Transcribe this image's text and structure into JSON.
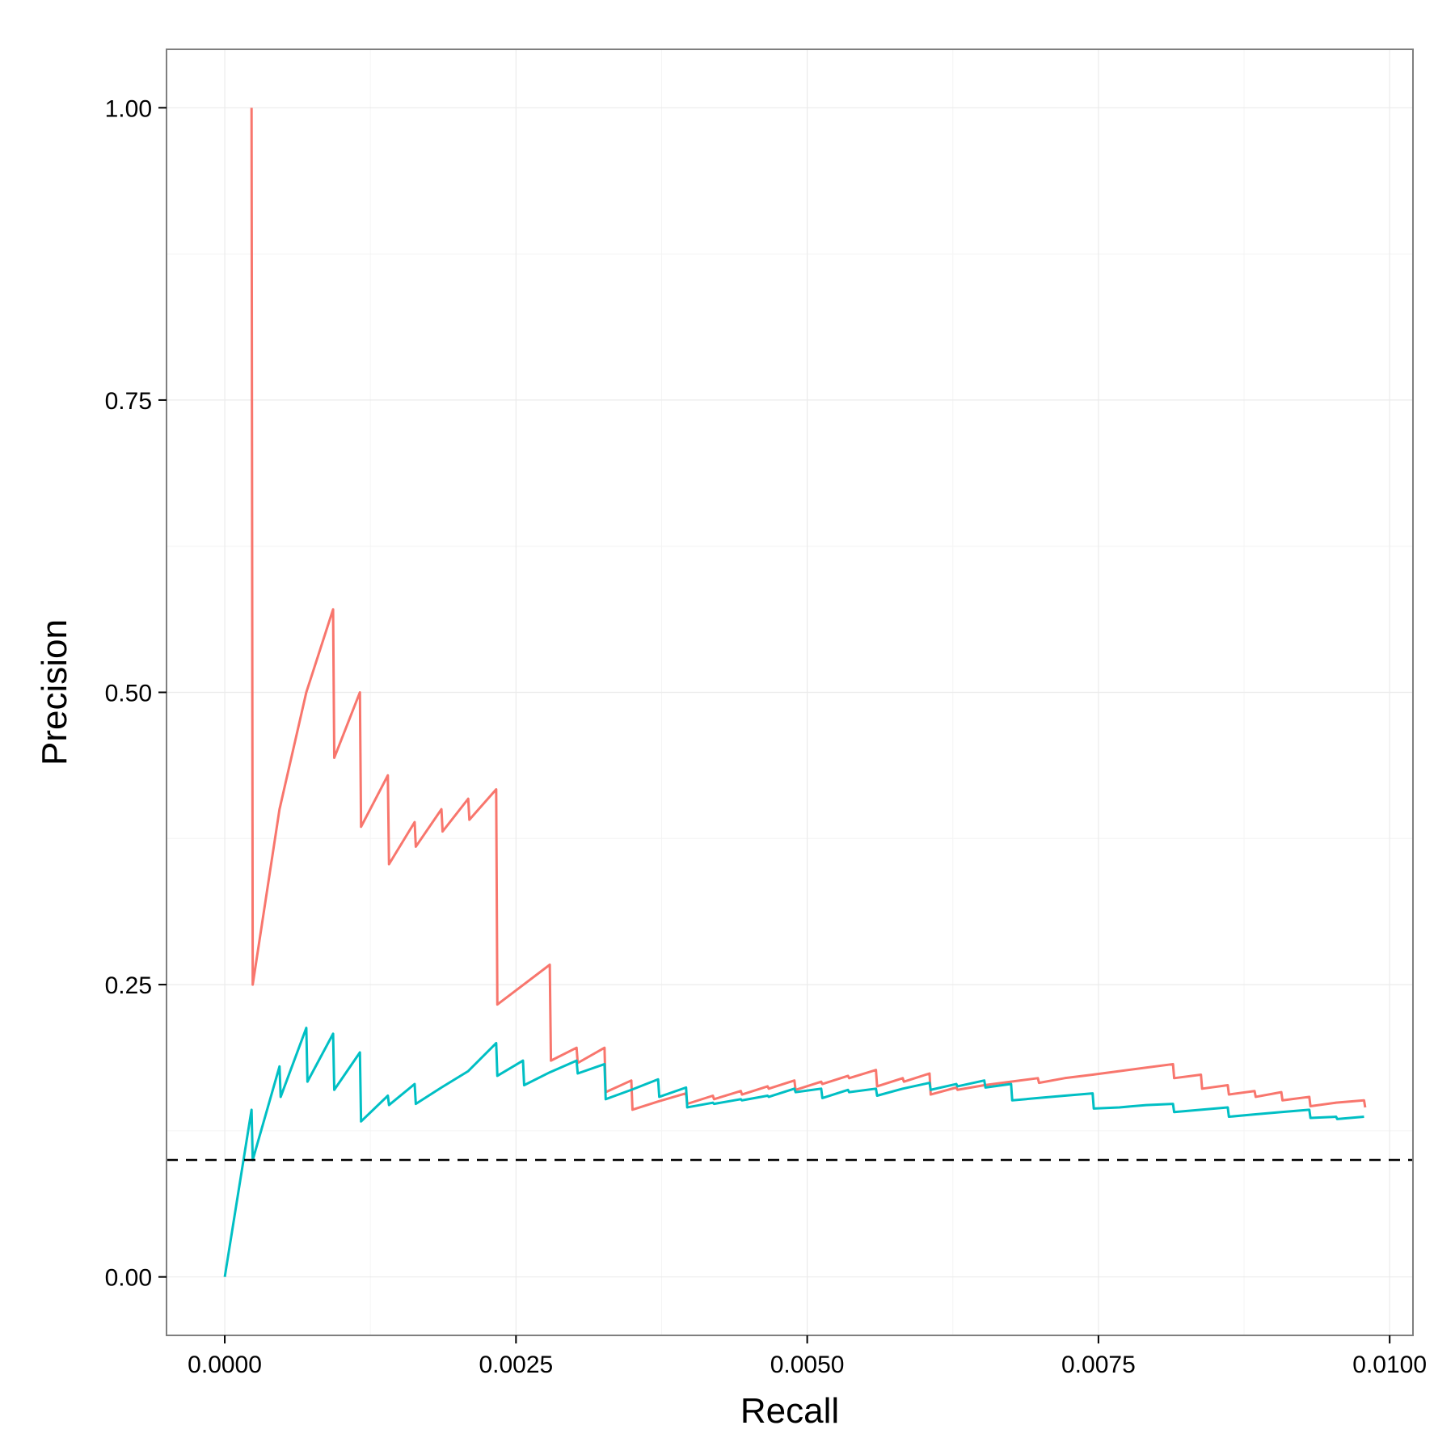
{
  "chart_data": {
    "type": "line",
    "title": "",
    "xlabel": "Recall",
    "ylabel": "Precision",
    "xlim": [
      -0.0005,
      0.0102
    ],
    "ylim": [
      -0.05,
      1.05
    ],
    "x_ticks": [
      0.0,
      0.0025,
      0.005,
      0.0075,
      0.01
    ],
    "x_tick_labels": [
      "0.0000",
      "0.0025",
      "0.0050",
      "0.0075",
      "0.0100"
    ],
    "y_ticks": [
      0.0,
      0.25,
      0.5,
      0.75,
      1.0
    ],
    "y_tick_labels": [
      "0.00",
      "0.25",
      "0.50",
      "0.75",
      "1.00"
    ],
    "grid": true,
    "legend": "none",
    "baseline": {
      "y": 0.1,
      "style": "dashed",
      "color": "#000000"
    },
    "series": [
      {
        "color": "#F8766D",
        "points": [
          [
            0.00023,
            1.0
          ],
          [
            0.00024,
            0.25
          ],
          [
            0.00047,
            0.4
          ],
          [
            0.0007,
            0.5
          ],
          [
            0.00093,
            0.571
          ],
          [
            0.00094,
            0.444
          ],
          [
            0.00116,
            0.5
          ],
          [
            0.00117,
            0.385
          ],
          [
            0.0014,
            0.429
          ],
          [
            0.00141,
            0.353
          ],
          [
            0.00163,
            0.389
          ],
          [
            0.00164,
            0.368
          ],
          [
            0.00186,
            0.4
          ],
          [
            0.00187,
            0.381
          ],
          [
            0.00209,
            0.409
          ],
          [
            0.0021,
            0.391
          ],
          [
            0.00233,
            0.417
          ],
          [
            0.00234,
            0.233
          ],
          [
            0.00279,
            0.267
          ],
          [
            0.0028,
            0.185
          ],
          [
            0.00302,
            0.196
          ],
          [
            0.00303,
            0.183
          ],
          [
            0.00326,
            0.196
          ],
          [
            0.00327,
            0.158
          ],
          [
            0.00349,
            0.168
          ],
          [
            0.0035,
            0.143
          ],
          [
            0.00372,
            0.15
          ],
          [
            0.00396,
            0.157
          ],
          [
            0.00397,
            0.148
          ],
          [
            0.00419,
            0.155
          ],
          [
            0.0042,
            0.152
          ],
          [
            0.00443,
            0.159
          ],
          [
            0.00444,
            0.156
          ],
          [
            0.00466,
            0.163
          ],
          [
            0.00467,
            0.161
          ],
          [
            0.00489,
            0.168
          ],
          [
            0.0049,
            0.16
          ],
          [
            0.00512,
            0.167
          ],
          [
            0.00513,
            0.165
          ],
          [
            0.00535,
            0.172
          ],
          [
            0.00536,
            0.17
          ],
          [
            0.00559,
            0.177
          ],
          [
            0.0056,
            0.163
          ],
          [
            0.00582,
            0.17
          ],
          [
            0.00583,
            0.167
          ],
          [
            0.00605,
            0.174
          ],
          [
            0.00606,
            0.156
          ],
          [
            0.00628,
            0.162
          ],
          [
            0.00629,
            0.16
          ],
          [
            0.00652,
            0.164
          ],
          [
            0.00675,
            0.167
          ],
          [
            0.00698,
            0.17
          ],
          [
            0.00699,
            0.166
          ],
          [
            0.00721,
            0.17
          ],
          [
            0.00745,
            0.173
          ],
          [
            0.00768,
            0.176
          ],
          [
            0.00791,
            0.179
          ],
          [
            0.00814,
            0.182
          ],
          [
            0.00815,
            0.17
          ],
          [
            0.00838,
            0.173
          ],
          [
            0.00839,
            0.161
          ],
          [
            0.00861,
            0.164
          ],
          [
            0.00862,
            0.156
          ],
          [
            0.00884,
            0.159
          ],
          [
            0.00885,
            0.154
          ],
          [
            0.00907,
            0.158
          ],
          [
            0.00908,
            0.151
          ],
          [
            0.00931,
            0.154
          ],
          [
            0.00932,
            0.146
          ],
          [
            0.00954,
            0.149
          ],
          [
            0.00978,
            0.151
          ],
          [
            0.00979,
            0.145
          ]
        ]
      },
      {
        "color": "#00BFC4",
        "points": [
          [
            0.0,
            0.0
          ],
          [
            0.00023,
            0.143
          ],
          [
            0.00024,
            0.1
          ],
          [
            0.00047,
            0.18
          ],
          [
            0.00048,
            0.154
          ],
          [
            0.0007,
            0.213
          ],
          [
            0.00071,
            0.167
          ],
          [
            0.00093,
            0.208
          ],
          [
            0.00094,
            0.16
          ],
          [
            0.00116,
            0.192
          ],
          [
            0.00117,
            0.133
          ],
          [
            0.0014,
            0.155
          ],
          [
            0.00141,
            0.147
          ],
          [
            0.00163,
            0.165
          ],
          [
            0.00164,
            0.148
          ],
          [
            0.00186,
            0.162
          ],
          [
            0.00209,
            0.176
          ],
          [
            0.00233,
            0.2
          ],
          [
            0.00234,
            0.172
          ],
          [
            0.00256,
            0.185
          ],
          [
            0.00257,
            0.164
          ],
          [
            0.00279,
            0.175
          ],
          [
            0.00302,
            0.185
          ],
          [
            0.00303,
            0.174
          ],
          [
            0.00326,
            0.182
          ],
          [
            0.00327,
            0.152
          ],
          [
            0.00349,
            0.16
          ],
          [
            0.00372,
            0.169
          ],
          [
            0.00373,
            0.154
          ],
          [
            0.00396,
            0.162
          ],
          [
            0.00397,
            0.145
          ],
          [
            0.00419,
            0.149
          ],
          [
            0.0042,
            0.148
          ],
          [
            0.00443,
            0.152
          ],
          [
            0.00444,
            0.151
          ],
          [
            0.00466,
            0.155
          ],
          [
            0.00467,
            0.154
          ],
          [
            0.00489,
            0.161
          ],
          [
            0.0049,
            0.158
          ],
          [
            0.00512,
            0.161
          ],
          [
            0.00513,
            0.153
          ],
          [
            0.00535,
            0.16
          ],
          [
            0.00536,
            0.158
          ],
          [
            0.00559,
            0.161
          ],
          [
            0.0056,
            0.155
          ],
          [
            0.00582,
            0.161
          ],
          [
            0.00605,
            0.166
          ],
          [
            0.00606,
            0.16
          ],
          [
            0.00628,
            0.165
          ],
          [
            0.00629,
            0.163
          ],
          [
            0.00652,
            0.168
          ],
          [
            0.00653,
            0.162
          ],
          [
            0.00675,
            0.165
          ],
          [
            0.00676,
            0.151
          ],
          [
            0.00698,
            0.153
          ],
          [
            0.00721,
            0.155
          ],
          [
            0.00745,
            0.157
          ],
          [
            0.00746,
            0.144
          ],
          [
            0.00768,
            0.145
          ],
          [
            0.00791,
            0.147
          ],
          [
            0.00814,
            0.148
          ],
          [
            0.00815,
            0.141
          ],
          [
            0.00838,
            0.143
          ],
          [
            0.00861,
            0.145
          ],
          [
            0.00862,
            0.137
          ],
          [
            0.00884,
            0.139
          ],
          [
            0.00907,
            0.141
          ],
          [
            0.00931,
            0.143
          ],
          [
            0.00932,
            0.136
          ],
          [
            0.00954,
            0.137
          ],
          [
            0.00955,
            0.135
          ],
          [
            0.00978,
            0.137
          ]
        ]
      }
    ]
  }
}
